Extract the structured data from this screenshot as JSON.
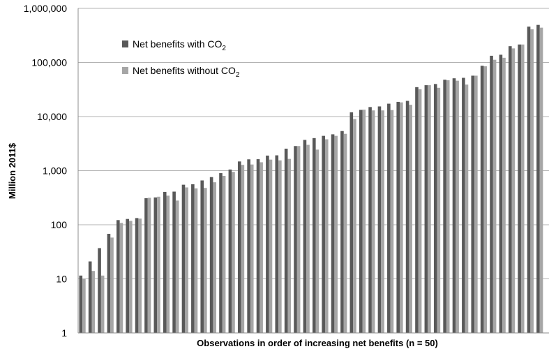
{
  "chart_data": {
    "type": "bar",
    "title": "",
    "xlabel": "Observations in order of increasing net benefits (n = 50)",
    "ylabel": "Million 2011$",
    "yscale": "log",
    "ylim": [
      1,
      1000000
    ],
    "yticks": [
      1,
      10,
      100,
      1000,
      10000,
      100000,
      1000000
    ],
    "ytick_labels": [
      "1",
      "10",
      "100",
      "1,000",
      "10,000",
      "100,000",
      "1,000,000"
    ],
    "grid": true,
    "legend_position": "top-left",
    "colors": {
      "with_co2": "#595959",
      "without_co2": "#a6a6a6"
    },
    "series": [
      {
        "name": "Net benefits with CO2",
        "legend_main": "Net benefits with CO",
        "legend_sub": "2",
        "values": [
          11.5,
          21,
          37,
          68,
          122,
          128,
          133,
          310,
          320,
          405,
          410,
          550,
          560,
          660,
          760,
          900,
          1050,
          1480,
          1620,
          1630,
          1900,
          1920,
          2550,
          2850,
          3700,
          4000,
          4400,
          4700,
          5400,
          12000,
          13300,
          15000,
          15400,
          17300,
          18700,
          19500,
          35000,
          38000,
          40000,
          48000,
          51000,
          52000,
          57000,
          87000,
          133000,
          139000,
          200000,
          215000,
          460000,
          495000
        ]
      },
      {
        "name": "Net benefits without CO2",
        "legend_main": "Net benefits without CO",
        "legend_sub": "2",
        "values": [
          10,
          14,
          11.5,
          58,
          108,
          118,
          130,
          315,
          330,
          345,
          280,
          490,
          470,
          480,
          610,
          800,
          950,
          1280,
          1300,
          1430,
          1600,
          1550,
          1650,
          2850,
          3000,
          2450,
          3800,
          4400,
          4800,
          9000,
          13400,
          13000,
          13000,
          13200,
          18300,
          16500,
          32000,
          38000,
          34000,
          47000,
          46000,
          39000,
          57000,
          85000,
          112000,
          122000,
          182000,
          215000,
          410000,
          440000
        ]
      }
    ]
  }
}
